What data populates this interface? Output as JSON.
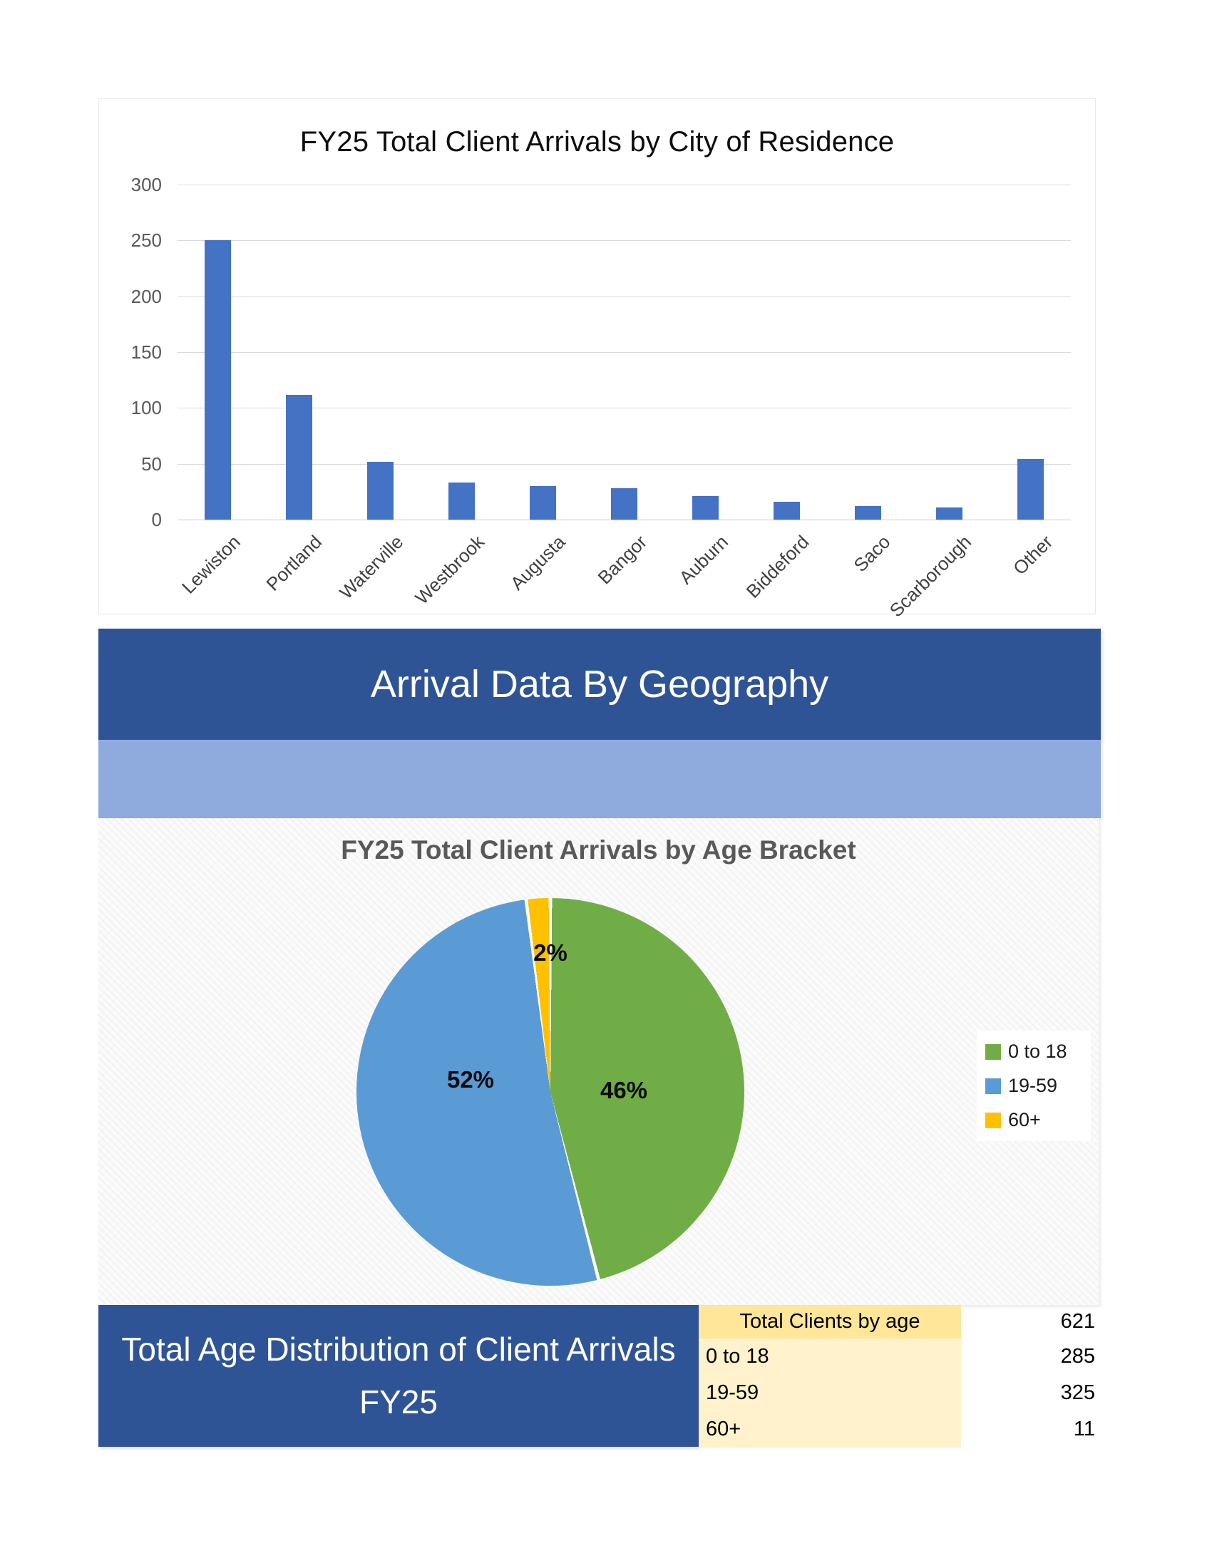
{
  "banners": {
    "geography_title": "Arrival Data By Geography",
    "age_title": "Total Age Distribution of Client Arrivals FY25"
  },
  "chart_data": [
    {
      "type": "bar",
      "title": "FY25 Total Client Arrivals by City of Residence",
      "categories": [
        "Lewiston",
        "Portland",
        "Waterville",
        "Westbrook",
        "Augusta",
        "Bangor",
        "Auburn",
        "Biddeford",
        "Saco",
        "Scarborough",
        "Other"
      ],
      "values": [
        250,
        112,
        52,
        33,
        30,
        28,
        21,
        16,
        12,
        11,
        54
      ],
      "xlabel": "",
      "ylabel": "",
      "ylim": [
        0,
        300
      ],
      "yticks": [
        300,
        250,
        200,
        150,
        100,
        50,
        0
      ],
      "grid": true,
      "legend": false,
      "bar_color": "#4472C4",
      "x_tick_rotation_deg": 45
    },
    {
      "type": "pie",
      "title": "FY25 Total Client Arrivals by Age Bracket",
      "labels": [
        "0 to 18",
        "19-59",
        "60+"
      ],
      "values_pct": [
        46,
        52,
        2
      ],
      "data_labels": [
        "46%",
        "52%",
        "2%"
      ],
      "colors": [
        "#70AD47",
        "#5B9BD5",
        "#FFC000"
      ],
      "legend_position": "right",
      "start_angle": "top",
      "direction": "clockwise"
    },
    {
      "type": "table",
      "header": {
        "label": "Total Clients by age",
        "value": "621"
      },
      "rows": [
        [
          "0 to 18",
          "285"
        ],
        [
          "19-59",
          "325"
        ],
        [
          "60+",
          "11"
        ]
      ]
    }
  ],
  "colors": {
    "bar_blue": "#4472C4",
    "banner_blue": "#2F5496",
    "band_light_blue": "#8FAADC",
    "pie_green": "#70AD47",
    "pie_blue": "#5B9BD5",
    "pie_yellow": "#FFC000",
    "table_header_bg": "#FFE699",
    "table_row_bg": "#FFF2CC",
    "axis_text": "#595959",
    "gridline": "#D9D9D9"
  }
}
